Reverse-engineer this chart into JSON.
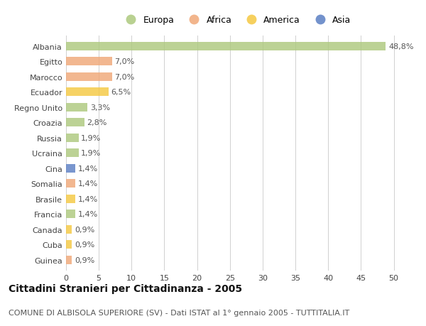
{
  "title": "Cittadini Stranieri per Cittadinanza - 2005",
  "subtitle": "COMUNE DI ALBISOLA SUPERIORE (SV) - Dati ISTAT al 1° gennaio 2005 - TUTTITALIA.IT",
  "categories": [
    "Albania",
    "Egitto",
    "Marocco",
    "Ecuador",
    "Regno Unito",
    "Croazia",
    "Russia",
    "Ucraina",
    "Cina",
    "Somalia",
    "Brasile",
    "Francia",
    "Canada",
    "Cuba",
    "Guinea"
  ],
  "values": [
    48.8,
    7.0,
    7.0,
    6.5,
    3.3,
    2.8,
    1.9,
    1.9,
    1.4,
    1.4,
    1.4,
    1.4,
    0.9,
    0.9,
    0.9
  ],
  "labels": [
    "48,8%",
    "7,0%",
    "7,0%",
    "6,5%",
    "3,3%",
    "2,8%",
    "1,9%",
    "1,9%",
    "1,4%",
    "1,4%",
    "1,4%",
    "1,4%",
    "0,9%",
    "0,9%",
    "0,9%"
  ],
  "colors": [
    "#adc97e",
    "#f0a878",
    "#f0a878",
    "#f5c842",
    "#adc97e",
    "#adc97e",
    "#adc97e",
    "#adc97e",
    "#5b7fc4",
    "#f0a878",
    "#f5c842",
    "#adc97e",
    "#f5c842",
    "#f5c842",
    "#f0a878"
  ],
  "legend": [
    {
      "label": "Europa",
      "color": "#adc97e"
    },
    {
      "label": "Africa",
      "color": "#f0a878"
    },
    {
      "label": "America",
      "color": "#f5c842"
    },
    {
      "label": "Asia",
      "color": "#5b7fc4"
    }
  ],
  "xlim": [
    0,
    52
  ],
  "xticks": [
    0,
    5,
    10,
    15,
    20,
    25,
    30,
    35,
    40,
    45,
    50
  ],
  "background_color": "#ffffff",
  "grid_color": "#d0d0d0",
  "title_fontsize": 10,
  "subtitle_fontsize": 8,
  "label_fontsize": 8,
  "tick_fontsize": 8,
  "bar_height": 0.55
}
